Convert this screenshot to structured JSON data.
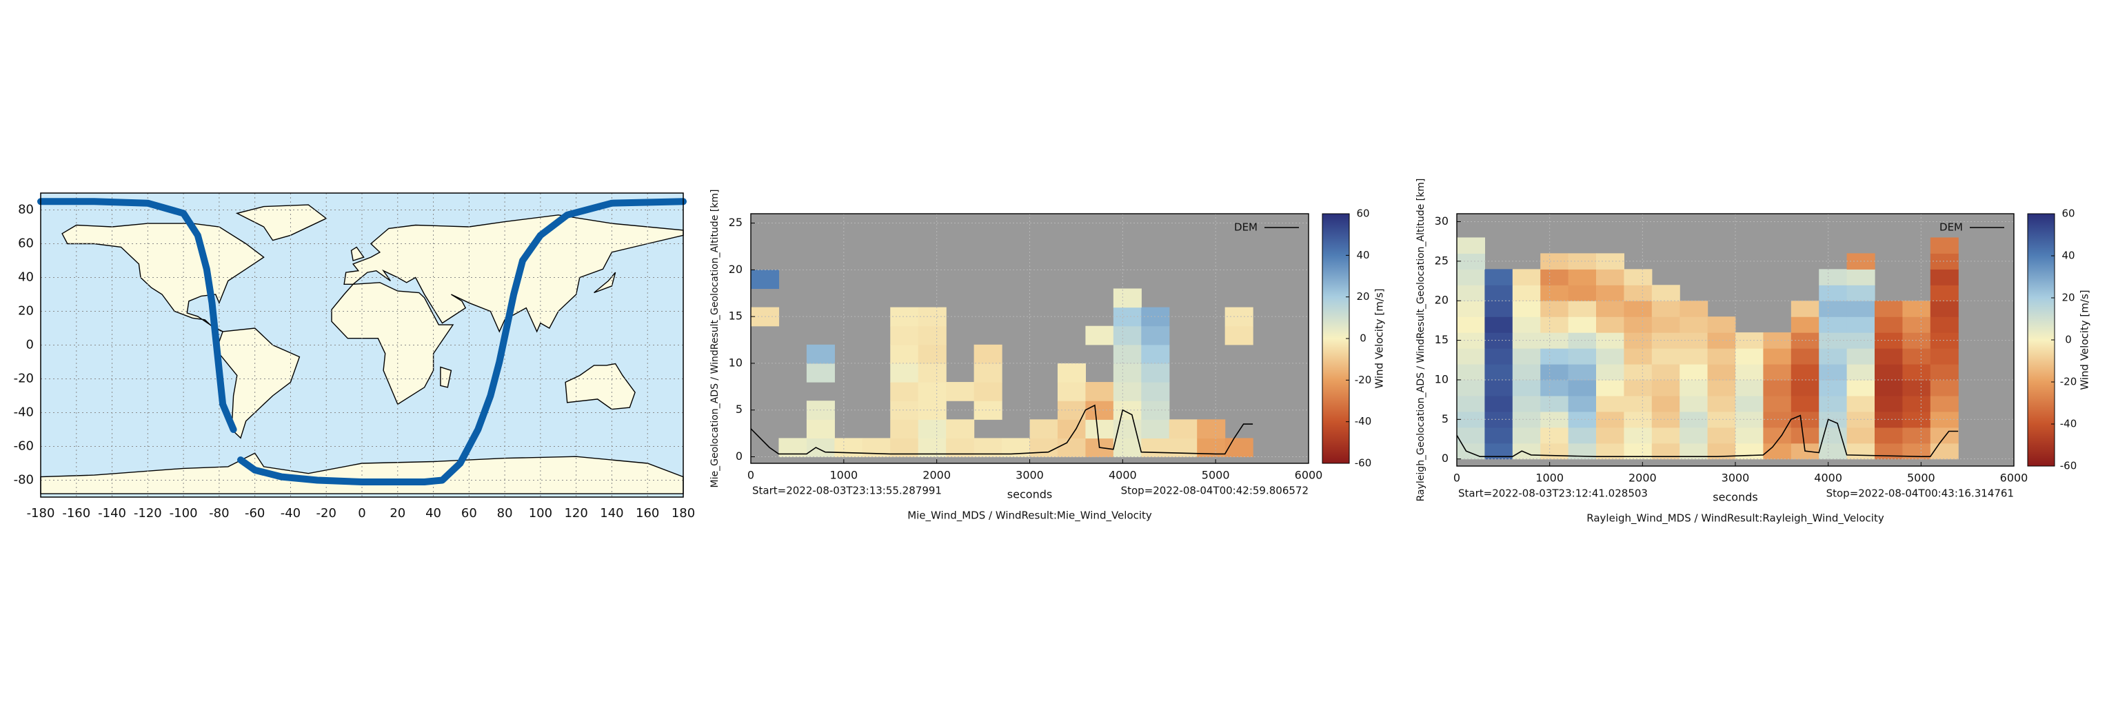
{
  "chart_data": [
    {
      "type": "map",
      "xlim": [
        -180,
        180
      ],
      "ylim": [
        -90,
        90
      ],
      "xticks": [
        -180,
        -160,
        -140,
        -120,
        -100,
        -80,
        -60,
        -40,
        -20,
        0,
        20,
        40,
        60,
        80,
        100,
        120,
        140,
        160,
        180
      ],
      "yticks": [
        -80,
        -60,
        -40,
        -20,
        0,
        20,
        40,
        60,
        80
      ],
      "grid": true,
      "color": "#0b5ea8",
      "x": [
        -180,
        -150,
        -120,
        -100,
        -92,
        -87,
        -84,
        -82,
        -80,
        -78,
        -74,
        -72,
        null,
        -68,
        -60,
        -45,
        -25,
        0,
        20,
        35,
        45,
        55,
        65,
        72,
        77,
        81,
        85,
        90,
        100,
        115,
        140,
        180
      ],
      "y": [
        85,
        85,
        84,
        78,
        65,
        45,
        25,
        5,
        -15,
        -35,
        -45,
        -50,
        null,
        -68,
        -74,
        -78,
        -80,
        -81,
        -81,
        -81,
        -80,
        -70,
        -50,
        -30,
        -10,
        10,
        30,
        50,
        65,
        77,
        84,
        85
      ]
    },
    {
      "type": "curtain",
      "title": "Mie_Wind_MDS / WindResult:Mie_Wind_Velocity",
      "x_label": "seconds",
      "y_label": "Mie_Geolocation_ADS / WindResult_Geolocation_Altitude [km]",
      "annotations": [
        "Start=2022-08-03T23:13:55.287991",
        "Stop=2022-08-04T00:42:59.806572"
      ],
      "xlim": [
        0,
        6000
      ],
      "ylim": [
        -0.7,
        26
      ],
      "xticks": [
        0,
        1000,
        2000,
        3000,
        4000,
        5000,
        6000
      ],
      "yticks": [
        0,
        5,
        10,
        15,
        20,
        25
      ],
      "grid": true,
      "background": "#999999",
      "x_bins": [
        0,
        300,
        600,
        900,
        1200,
        1500,
        1800,
        2100,
        2400,
        2700,
        3000,
        3300,
        3600,
        3900,
        4200,
        4500,
        4800,
        5100,
        5400
      ],
      "y_bins": [
        0,
        2,
        4,
        6,
        8,
        10,
        12,
        14,
        16,
        18,
        20
      ],
      "values": [
        [
          null,
          3,
          5,
          -2,
          -3,
          -5,
          2,
          -4,
          -3,
          -2,
          -6,
          -8,
          -15,
          4,
          -5,
          -5,
          -20,
          -22
        ],
        [
          null,
          null,
          2,
          null,
          null,
          -4,
          3,
          -3,
          null,
          null,
          -5,
          -10,
          2,
          5,
          8,
          -6,
          -18,
          null
        ],
        [
          null,
          null,
          4,
          null,
          null,
          -3,
          -2,
          null,
          -2,
          null,
          null,
          -8,
          -18,
          2,
          10,
          null,
          null,
          null
        ],
        [
          null,
          null,
          null,
          null,
          null,
          -4,
          -2,
          -3,
          -5,
          null,
          null,
          -3,
          -10,
          6,
          12,
          null,
          null,
          null
        ],
        [
          null,
          null,
          10,
          null,
          null,
          2,
          -3,
          null,
          -4,
          null,
          null,
          -2,
          null,
          8,
          15,
          null,
          null,
          null
        ],
        [
          null,
          null,
          25,
          null,
          null,
          -2,
          -5,
          null,
          -6,
          null,
          null,
          null,
          null,
          10,
          20,
          null,
          null,
          null
        ],
        [
          null,
          null,
          null,
          null,
          null,
          -3,
          -4,
          null,
          null,
          null,
          null,
          null,
          2,
          15,
          25,
          null,
          null,
          -4
        ],
        [
          -5,
          null,
          null,
          null,
          null,
          -2,
          -3,
          null,
          null,
          null,
          null,
          null,
          null,
          20,
          28,
          null,
          null,
          -3
        ],
        [
          null,
          null,
          null,
          null,
          null,
          null,
          null,
          null,
          null,
          null,
          null,
          null,
          null,
          3,
          null,
          null,
          null,
          null
        ],
        [
          40,
          null,
          null,
          null,
          null,
          null,
          null,
          null,
          null,
          null,
          null,
          null,
          null,
          null,
          null,
          null,
          null,
          null
        ]
      ],
      "colorbar": {
        "label": "Wind Velocity [m/s]",
        "lim": [
          -60,
          60
        ],
        "ticks": [
          -60,
          -40,
          -20,
          0,
          20,
          40,
          60
        ],
        "colormap": [
          "#8b1a1a",
          "#c8552b",
          "#e9a060",
          "#f8f1c0",
          "#a8cde0",
          "#4f7db5",
          "#2a2f7a"
        ]
      },
      "lines": [
        {
          "name": "DEM",
          "color": "#000000",
          "x": [
            0,
            200,
            300,
            600,
            700,
            800,
            1500,
            2800,
            3200,
            3400,
            3500,
            3600,
            3700,
            3750,
            3900,
            4000,
            4100,
            4200,
            5000,
            5100,
            5200,
            5300,
            5400
          ],
          "y": [
            3,
            1,
            0.3,
            0.3,
            1,
            0.5,
            0.3,
            0.3,
            0.5,
            1.5,
            3,
            5,
            5.5,
            1,
            0.8,
            5,
            4.5,
            0.5,
            0.3,
            0.3,
            2,
            3.5,
            3.5
          ]
        }
      ]
    },
    {
      "type": "curtain",
      "title": "Rayleigh_Wind_MDS / WindResult:Rayleigh_Wind_Velocity",
      "x_label": "seconds",
      "y_label": "Rayleigh_Geolocation_ADS / WindResult_Geolocation_Altitude [km]",
      "annotations": [
        "Start=2022-08-03T23:12:41.028503",
        "Stop=2022-08-04T00:43:16.314761"
      ],
      "xlim": [
        0,
        6000
      ],
      "ylim": [
        -0.9,
        31
      ],
      "xticks": [
        0,
        1000,
        2000,
        3000,
        4000,
        5000,
        6000
      ],
      "yticks": [
        0,
        5,
        10,
        15,
        20,
        25,
        30
      ],
      "grid": true,
      "background": "#999999",
      "x_bins": [
        0,
        300,
        600,
        900,
        1200,
        1500,
        1800,
        2100,
        2400,
        2700,
        3000,
        3300,
        3600,
        3900,
        4200,
        4500,
        4800,
        5100,
        5400
      ],
      "y_bins": [
        0,
        2,
        4,
        6,
        8,
        10,
        12,
        14,
        16,
        18,
        20,
        22,
        24,
        26,
        28
      ],
      "values": [
        [
          10,
          45,
          5,
          -5,
          10,
          -5,
          0,
          -8,
          5,
          -10,
          0,
          -20,
          -15,
          10,
          -5,
          -30,
          -25,
          -10
        ],
        [
          12,
          48,
          8,
          -3,
          15,
          -8,
          2,
          -5,
          8,
          -8,
          3,
          -25,
          -30,
          12,
          -10,
          -35,
          -30,
          -15
        ],
        [
          15,
          50,
          10,
          5,
          20,
          -10,
          -3,
          -10,
          10,
          -5,
          5,
          -30,
          -35,
          15,
          -8,
          -45,
          -40,
          -20
        ],
        [
          12,
          52,
          12,
          15,
          25,
          -5,
          -5,
          -12,
          5,
          -8,
          8,
          -28,
          -40,
          18,
          -5,
          -48,
          -42,
          -25
        ],
        [
          10,
          50,
          15,
          25,
          28,
          0,
          -8,
          -10,
          3,
          -10,
          5,
          -30,
          -42,
          20,
          0,
          -50,
          -45,
          -30
        ],
        [
          8,
          48,
          12,
          28,
          25,
          5,
          -5,
          -8,
          0,
          -12,
          2,
          -25,
          -40,
          22,
          5,
          -48,
          -40,
          -35
        ],
        [
          5,
          50,
          10,
          20,
          18,
          8,
          -10,
          -5,
          -5,
          -10,
          0,
          -20,
          -35,
          18,
          10,
          -45,
          -35,
          -38
        ],
        [
          3,
          52,
          5,
          5,
          10,
          3,
          -12,
          -8,
          -8,
          -15,
          -5,
          -15,
          -30,
          15,
          15,
          -40,
          -30,
          -40
        ],
        [
          0,
          55,
          3,
          -5,
          0,
          -10,
          -15,
          -12,
          -10,
          -12,
          null,
          null,
          -20,
          20,
          20,
          -35,
          -25,
          -42
        ],
        [
          2,
          50,
          0,
          -10,
          -5,
          -15,
          -18,
          -10,
          -12,
          null,
          null,
          null,
          -10,
          25,
          25,
          -30,
          -20,
          -45
        ],
        [
          5,
          48,
          -2,
          -20,
          -22,
          -18,
          -10,
          -5,
          null,
          null,
          null,
          null,
          null,
          20,
          18,
          null,
          null,
          -40
        ],
        [
          8,
          45,
          -5,
          -25,
          -20,
          -12,
          -5,
          null,
          null,
          null,
          null,
          null,
          null,
          10,
          8,
          null,
          null,
          -45
        ],
        [
          10,
          null,
          null,
          -10,
          -8,
          -5,
          null,
          null,
          null,
          null,
          null,
          null,
          null,
          null,
          -25,
          null,
          null,
          -35
        ],
        [
          5,
          null,
          null,
          null,
          null,
          null,
          null,
          null,
          null,
          null,
          null,
          null,
          null,
          null,
          null,
          null,
          null,
          -30
        ]
      ],
      "colorbar": {
        "label": "Wind Velocity [m/s]",
        "lim": [
          -60,
          60
        ],
        "ticks": [
          -60,
          -40,
          -20,
          0,
          20,
          40,
          60
        ],
        "colormap": [
          "#8b1a1a",
          "#c8552b",
          "#e9a060",
          "#f8f1c0",
          "#a8cde0",
          "#4f7db5",
          "#2a2f7a"
        ]
      },
      "lines": [
        {
          "name": "DEM",
          "color": "#000000",
          "x": [
            0,
            100,
            250,
            600,
            700,
            800,
            1500,
            2800,
            3300,
            3400,
            3500,
            3600,
            3700,
            3750,
            3900,
            4000,
            4100,
            4200,
            5000,
            5100,
            5200,
            5300,
            5400
          ],
          "y": [
            3,
            1,
            0.3,
            0.3,
            1,
            0.5,
            0.3,
            0.3,
            0.5,
            1.5,
            3,
            5,
            5.5,
            1,
            0.8,
            5,
            4.5,
            0.5,
            0.3,
            0.3,
            2,
            3.5,
            3.5
          ]
        }
      ]
    }
  ]
}
